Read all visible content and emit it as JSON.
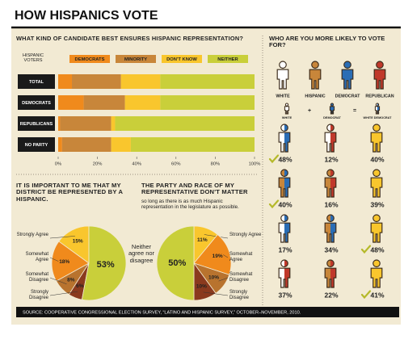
{
  "title": "HOW HISPANICS VOTE",
  "source": "SOURCE: COOPERATIVE CONGRESSIONAL ELECTION SURVEY, “LATINO AND HISPANIC SURVEY,” OCTOBER–NOVEMBER, 2010.",
  "chart_data": [
    {
      "type": "stacked-bar",
      "orientation": "horizontal",
      "title": "WHAT KIND OF CANDIDATE BEST ENSURES HISPANIC REPRESENTATION?",
      "legend_title": "HISPANIC VOTERS",
      "categories": [
        "TOTAL",
        "DEMOCRATS",
        "REPUBLICANS",
        "NO PARTY"
      ],
      "series": [
        {
          "name": "DEMOCRATS",
          "color": "#f08a1c",
          "values": [
            7,
            13,
            1,
            2
          ]
        },
        {
          "name": "MINORITY",
          "color": "#c8863a",
          "values": [
            25,
            21,
            26,
            25
          ]
        },
        {
          "name": "DON'T KNOW",
          "color": "#f9c62d",
          "values": [
            20,
            18,
            2,
            10
          ]
        },
        {
          "name": "NEITHER",
          "color": "#c9cf3a",
          "values": [
            48,
            48,
            71,
            63
          ]
        }
      ],
      "xlim": [
        0,
        100
      ],
      "xticks": [
        {
          "value": 0,
          "label": "0%"
        },
        {
          "value": 20,
          "label": "20%"
        },
        {
          "value": 40,
          "label": "40%"
        },
        {
          "value": 60,
          "label": "60%"
        },
        {
          "value": 80,
          "label": "80%"
        },
        {
          "value": 100,
          "label": "100%"
        }
      ]
    },
    {
      "type": "pie",
      "direction": "counterclockwise",
      "title": "IT IS IMPORTANT TO ME THAT MY DISTRICT BE REPRESENTED BY A HISPANIC.",
      "categories": [
        "Strongly Agree",
        "Somewhat Agree",
        "Somewhat Disagree",
        "Strongly Disagree",
        "Neither agree nor disagree"
      ],
      "values": [
        15,
        18,
        8,
        6,
        53
      ],
      "value_labels": [
        "15%",
        "18%",
        "8%",
        "6%",
        "53%"
      ],
      "colors": [
        "#f9c62d",
        "#f08a1c",
        "#b8732e",
        "#8a3a1e",
        "#c9cf3a"
      ]
    },
    {
      "type": "pie",
      "direction": "clockwise",
      "title": "THE PARTY AND RACE OF MY REPRESENTATIVE DON'T MATTER",
      "subtitle": "so long as there is as much Hispanic representation in the legislature as possible.",
      "categories": [
        "Strongly Agree",
        "Somewhat Agree",
        "Somewhat Disagree",
        "Strongly Disagree",
        null
      ],
      "values": [
        11,
        19,
        10,
        10,
        50
      ],
      "value_labels": [
        "11%",
        "19%",
        "10%",
        "10%",
        "50%"
      ],
      "colors": [
        "#f9c62d",
        "#f08a1c",
        "#b8732e",
        "#8a3a1e",
        "#c9cf3a"
      ]
    },
    {
      "type": "pictogram",
      "title": "WHO ARE YOU MORE LIKELY TO VOTE FOR?",
      "key": [
        {
          "name": "WHITE",
          "colors": [
            "#ffffff",
            "#ffffff"
          ]
        },
        {
          "name": "HISPANIC",
          "colors": [
            "#c8863a",
            "#c8863a"
          ]
        },
        {
          "name": "DEMOCRAT",
          "colors": [
            "#2a6db5",
            "#2a6db5"
          ]
        },
        {
          "name": "REPUBLICAN",
          "colors": [
            "#c0392b",
            "#c0392b"
          ]
        }
      ],
      "equation": [
        {
          "label": "WHITE",
          "colors": [
            "#ffffff",
            "#ffffff"
          ]
        },
        {
          "label": "+"
        },
        {
          "label": "DEMOCRAT",
          "colors": [
            "#2a6db5",
            "#2a6db5"
          ]
        },
        {
          "label": "="
        },
        {
          "label": "WHITE DEMOCRAT",
          "colors": [
            "#ffffff",
            "#2a6db5"
          ]
        }
      ],
      "check_color": "#b5b92a",
      "rows": [
        {
          "values": [
            48,
            12,
            40
          ],
          "value_labels": [
            "48%",
            "12%",
            "40%"
          ],
          "winner": 0,
          "colors": [
            [
              "#ffffff",
              "#2a6db5"
            ],
            [
              "#ffffff",
              "#c0392b"
            ],
            [
              "#f9c62d",
              "#f9c62d"
            ]
          ]
        },
        {
          "values": [
            40,
            16,
            39
          ],
          "value_labels": [
            "40%",
            "16%",
            "39%"
          ],
          "winner": 0,
          "colors": [
            [
              "#c8863a",
              "#2a6db5"
            ],
            [
              "#c8863a",
              "#c0392b"
            ],
            [
              "#f9c62d",
              "#f9c62d"
            ]
          ]
        },
        {
          "values": [
            17,
            34,
            48
          ],
          "value_labels": [
            "17%",
            "34%",
            "48%"
          ],
          "winner": 2,
          "colors": [
            [
              "#ffffff",
              "#2a6db5"
            ],
            [
              "#c8863a",
              "#2a6db5"
            ],
            [
              "#f9c62d",
              "#f9c62d"
            ]
          ]
        },
        {
          "values": [
            37,
            22,
            41
          ],
          "value_labels": [
            "37%",
            "22%",
            "41%"
          ],
          "winner": 2,
          "colors": [
            [
              "#ffffff",
              "#c0392b"
            ],
            [
              "#c8863a",
              "#c0392b"
            ],
            [
              "#f9c62d",
              "#f9c62d"
            ]
          ]
        }
      ]
    }
  ]
}
